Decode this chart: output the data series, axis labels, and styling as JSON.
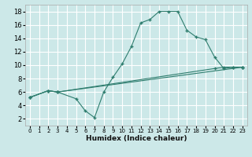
{
  "xlabel": "Humidex (Indice chaleur)",
  "bg_color": "#cce8e8",
  "grid_color": "#ffffff",
  "line_color": "#2e7d6e",
  "xlim": [
    -0.5,
    23.5
  ],
  "ylim": [
    1.0,
    19.0
  ],
  "xticks": [
    0,
    1,
    2,
    3,
    4,
    5,
    6,
    7,
    8,
    9,
    10,
    11,
    12,
    13,
    14,
    15,
    16,
    17,
    18,
    19,
    20,
    21,
    22,
    23
  ],
  "yticks": [
    2,
    4,
    6,
    8,
    10,
    12,
    14,
    16,
    18
  ],
  "line1_x": [
    0,
    2,
    3,
    5,
    6,
    7,
    8,
    9,
    10,
    11,
    12,
    13,
    14,
    15,
    16,
    17,
    18,
    19,
    20,
    21,
    22,
    23
  ],
  "line1_y": [
    5.2,
    6.2,
    6.0,
    5.0,
    3.2,
    2.2,
    6.0,
    8.2,
    10.2,
    12.8,
    16.3,
    16.8,
    18.0,
    18.0,
    18.0,
    15.2,
    14.2,
    13.8,
    11.2,
    9.5,
    9.7,
    9.7
  ],
  "line2_x": [
    0,
    2,
    3,
    23
  ],
  "line2_y": [
    5.2,
    6.2,
    6.0,
    9.7
  ],
  "line3_x": [
    0,
    2,
    3,
    20,
    21,
    22,
    23
  ],
  "line3_y": [
    5.2,
    6.2,
    6.0,
    9.5,
    9.7,
    9.7,
    9.7
  ]
}
